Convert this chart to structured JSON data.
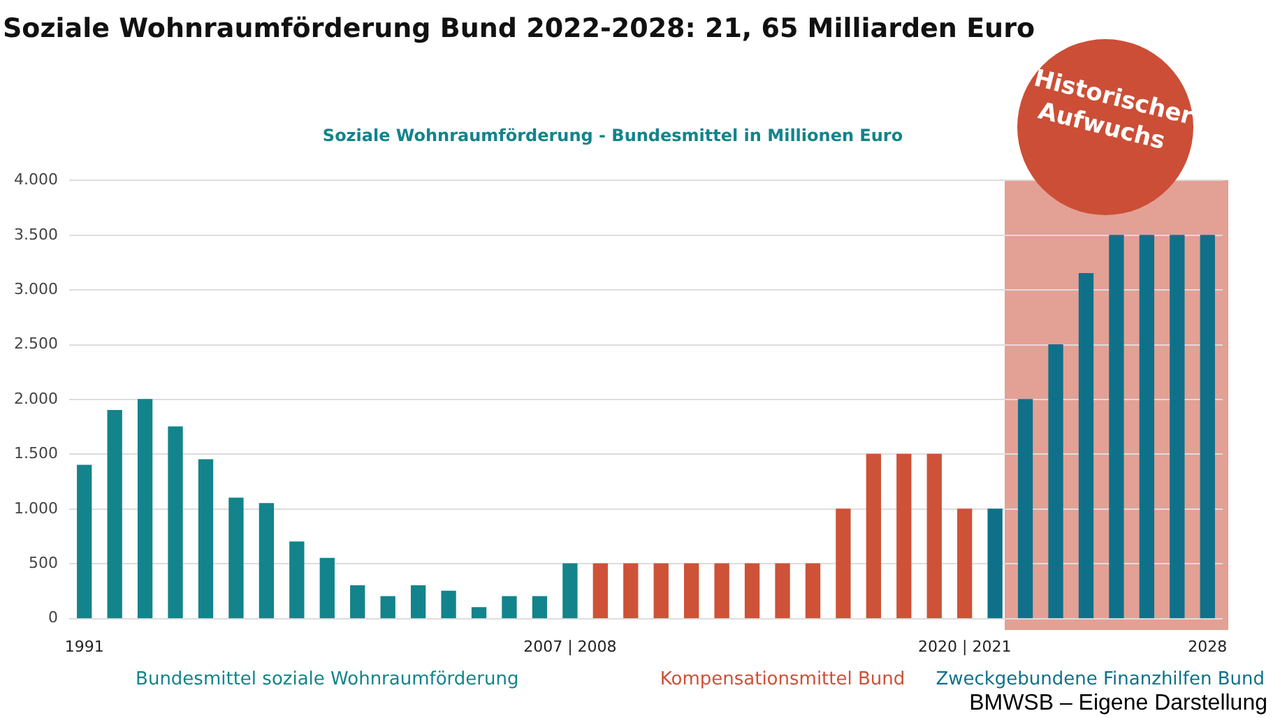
{
  "chart_data": {
    "type": "bar",
    "title": "Soziale Wohnraumförderung Bund 2022-2028: 21, 65 Milliarden Euro",
    "subtitle": "Soziale Wohnraumförderung - Bundesmittel in Millionen Euro",
    "categories": [
      "1991",
      null,
      null,
      null,
      null,
      null,
      null,
      null,
      null,
      null,
      null,
      null,
      null,
      null,
      null,
      null,
      "2007 | 2008",
      null,
      null,
      null,
      null,
      null,
      null,
      null,
      null,
      null,
      null,
      null,
      null,
      "2020 | 2021",
      null,
      null,
      null,
      null,
      null,
      null,
      null,
      "2028"
    ],
    "series": [
      {
        "name": "Bundesmittel soziale Wohnraumförderung",
        "color": "#13848b",
        "values": [
          1400,
          1900,
          2000,
          1750,
          1450,
          1100,
          1050,
          700,
          550,
          300,
          200,
          300,
          250,
          100,
          200,
          200,
          500,
          null,
          null,
          null,
          null,
          null,
          null,
          null,
          null,
          null,
          null,
          null,
          null,
          null,
          null,
          null,
          null,
          null,
          null,
          null,
          null,
          null
        ]
      },
      {
        "name": "Kompensationsmittel Bund",
        "color": "#cd5238",
        "values": [
          null,
          null,
          null,
          null,
          null,
          null,
          null,
          null,
          null,
          null,
          null,
          null,
          null,
          null,
          null,
          null,
          null,
          500,
          500,
          500,
          500,
          500,
          500,
          500,
          500,
          1000,
          1500,
          1500,
          1500,
          1000,
          null,
          null,
          null,
          null,
          null,
          null,
          null,
          null
        ]
      },
      {
        "name": "Zweckgebundene Finanzhilfen Bund",
        "color": "#0f7189",
        "values": [
          null,
          null,
          null,
          null,
          null,
          null,
          null,
          null,
          null,
          null,
          null,
          null,
          null,
          null,
          null,
          null,
          null,
          null,
          null,
          null,
          null,
          null,
          null,
          null,
          null,
          null,
          null,
          null,
          null,
          null,
          1000,
          2000,
          2500,
          3150,
          3500,
          3500,
          3500,
          3500
        ]
      }
    ],
    "ylim": [
      0,
      4000
    ],
    "yticks": [
      0,
      500,
      {
        "value": 1000,
        "label": "1.000"
      },
      {
        "value": 1500,
        "label": "1.500"
      },
      {
        "value": 2000,
        "label": "2.000"
      },
      {
        "value": 2500,
        "label": "2.500"
      },
      {
        "value": 3000,
        "label": "3.000"
      },
      {
        "value": 3500,
        "label": "3.500"
      },
      {
        "value": 4000,
        "label": "4.000"
      }
    ],
    "grid": "y",
    "annotations": [
      "Historischer Aufwuchs",
      "BMWSB – Eigene Darstellung"
    ]
  }
}
